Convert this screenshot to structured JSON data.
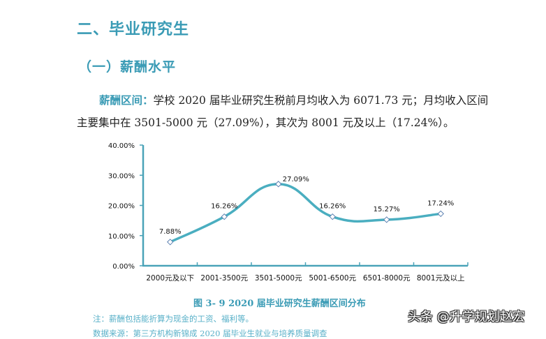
{
  "heading": "二、毕业研究生",
  "subheading": "（一）薪酬水平",
  "paragraph": {
    "lead": "薪酬区间：",
    "line1": "学校 2020 届毕业研究生税前月均收入为 6071.73 元；月均收入区间",
    "line2": "主要集中在 3501-5000 元（27.09%），其次为 8001 元及以上（17.24%）。"
  },
  "caption": "图 3- 9    2020 届毕业研究生薪酬区间分布",
  "note": "注：薪酬包括能折算为现金的工资、福利等。",
  "source": "数据来源：第三方机构新锦成 2020 届毕业生就业与培养质量调查",
  "watermark": "头条 @升学规划赵宏",
  "colors": {
    "accent": "#3a9bb5",
    "line": "#4aaec0",
    "axis": "#4aa3b8"
  },
  "chart_data": {
    "type": "line",
    "title": "2020 届毕业研究生薪酬区间分布",
    "categories": [
      "2000元及以下",
      "2001-3500元",
      "3501-5000元",
      "5001-6500元",
      "6501-8000元",
      "8001元及以上"
    ],
    "values": [
      7.88,
      16.26,
      27.09,
      16.26,
      15.27,
      17.24
    ],
    "data_labels": [
      "7.88%",
      "16.26%",
      "27.09%",
      "16.26%",
      "15.27%",
      "17.24%"
    ],
    "y_ticks": [
      "0.00%",
      "10.00%",
      "20.00%",
      "30.00%",
      "40.00%"
    ],
    "xlabel": "",
    "ylabel": "",
    "ylim": [
      0,
      40
    ],
    "smooth": true,
    "marker": "diamond",
    "grid": false,
    "legend": null
  }
}
